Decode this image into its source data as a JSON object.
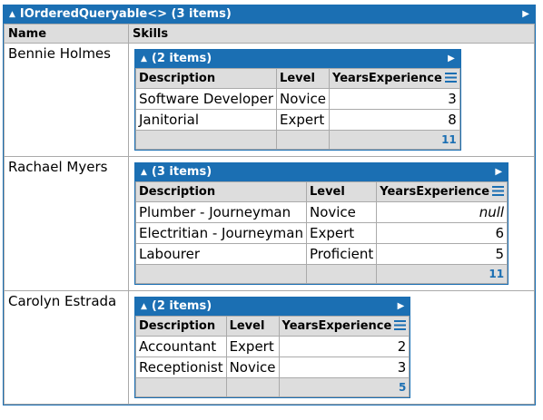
{
  "root": {
    "title": "IOrderedQueryable<> (3 items)",
    "columns": [
      "Name",
      "Skills"
    ],
    "rows": [
      {
        "name": "Bennie Holmes",
        "skills": {
          "title": "(2 items)",
          "columns": [
            "Description",
            "Level",
            "YearsExperience"
          ],
          "rows": [
            {
              "description": "Software Developer",
              "level": "Novice",
              "years": "3"
            },
            {
              "description": "Janitorial",
              "level": "Expert",
              "years": "8"
            }
          ],
          "total": "11"
        }
      },
      {
        "name": "Rachael Myers",
        "skills": {
          "title": "(3 items)",
          "columns": [
            "Description",
            "Level",
            "YearsExperience"
          ],
          "rows": [
            {
              "description": "Plumber - Journeyman",
              "level": "Novice",
              "years": "null"
            },
            {
              "description": "Electritian - Journeyman",
              "level": "Expert",
              "years": "6"
            },
            {
              "description": "Labourer",
              "level": "Proficient",
              "years": "5"
            }
          ],
          "total": "11"
        }
      },
      {
        "name": "Carolyn Estrada",
        "skills": {
          "title": "(2 items)",
          "columns": [
            "Description",
            "Level",
            "YearsExperience"
          ],
          "rows": [
            {
              "description": "Accountant",
              "level": "Expert",
              "years": "2"
            },
            {
              "description": "Receptionist",
              "level": "Novice",
              "years": "3"
            }
          ],
          "total": "5"
        }
      }
    ]
  },
  "icons": {
    "collapse": "▲",
    "expand": "▶",
    "column_menu": "menu-icon"
  },
  "colors": {
    "header_blue": "#1b6fb3",
    "header_gray": "#dddddd",
    "null_green": "#1d8c1d"
  }
}
